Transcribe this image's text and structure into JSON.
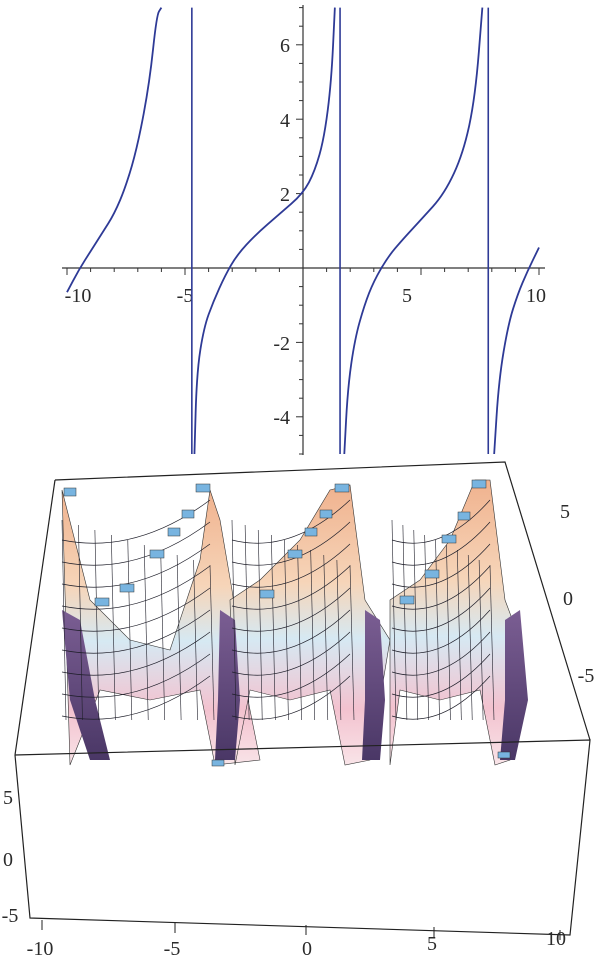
{
  "chart_data": [
    {
      "type": "line",
      "title": "",
      "xlabel": "",
      "ylabel": "",
      "xlim": [
        -10,
        10
      ],
      "ylim": [
        -5,
        7
      ],
      "x_ticks": [
        "-10",
        "-5",
        "5",
        "10"
      ],
      "x_tick_values": [
        -10,
        -5,
        5,
        10
      ],
      "y_ticks": [
        "6",
        "4",
        "2",
        "-2",
        "-4"
      ],
      "y_tick_values": [
        6,
        4,
        2,
        -2,
        -4
      ],
      "asymptotes_x": [
        -4.71,
        1.57,
        7.85
      ],
      "series": [
        {
          "color": "#2e3a96",
          "points": [
            [
              -10,
              -0.65
            ],
            [
              -9.5,
              -0.05
            ],
            [
              -9,
              0.45
            ],
            [
              -8.5,
              0.95
            ],
            [
              -8,
              1.45
            ],
            [
              -7.5,
              2.2
            ],
            [
              -7,
              3.3
            ],
            [
              -6.5,
              5.0
            ],
            [
              -6.2,
              6.8
            ],
            [
              -6.0,
              7.0
            ],
            [
              -4.6,
              -5.0
            ],
            [
              -4.5,
              -2.8
            ],
            [
              -4.2,
              -1.6
            ],
            [
              -3.8,
              -0.9
            ],
            [
              -3.3,
              -0.2
            ],
            [
              -2.8,
              0.35
            ],
            [
              -2,
              0.9
            ],
            [
              -1,
              1.45
            ],
            [
              0,
              2.0
            ],
            [
              0.5,
              2.6
            ],
            [
              0.9,
              3.5
            ],
            [
              1.2,
              5.0
            ],
            [
              1.35,
              7.0
            ],
            [
              1.75,
              -5.0
            ],
            [
              1.9,
              -3.2
            ],
            [
              2.2,
              -1.9
            ],
            [
              2.6,
              -1.0
            ],
            [
              3.0,
              -0.35
            ],
            [
              3.6,
              0.3
            ],
            [
              4.2,
              0.75
            ],
            [
              5,
              1.3
            ],
            [
              6,
              2.0
            ],
            [
              6.8,
              3.1
            ],
            [
              7.3,
              4.6
            ],
            [
              7.6,
              7.0
            ],
            [
              8.1,
              -5.0
            ],
            [
              8.3,
              -3.0
            ],
            [
              8.7,
              -1.5
            ],
            [
              9.1,
              -0.7
            ],
            [
              9.5,
              -0.1
            ],
            [
              10,
              0.55
            ]
          ]
        }
      ]
    },
    {
      "type": "surface",
      "title": "",
      "xlim": [
        -10,
        10
      ],
      "ylim": [
        -5,
        5
      ],
      "zlim": [
        -5,
        5
      ],
      "x_ticks": [
        "-10",
        "-5",
        "0",
        "5",
        "10"
      ],
      "y_ticks": [
        "5",
        "0",
        "-5"
      ],
      "z_ticks": [
        "5",
        "0",
        "-5"
      ],
      "surface_colors": [
        "#f0b28e",
        "#f6d5b9",
        "#d6e9f3",
        "#f3c2cf",
        "#5b4679"
      ]
    }
  ]
}
